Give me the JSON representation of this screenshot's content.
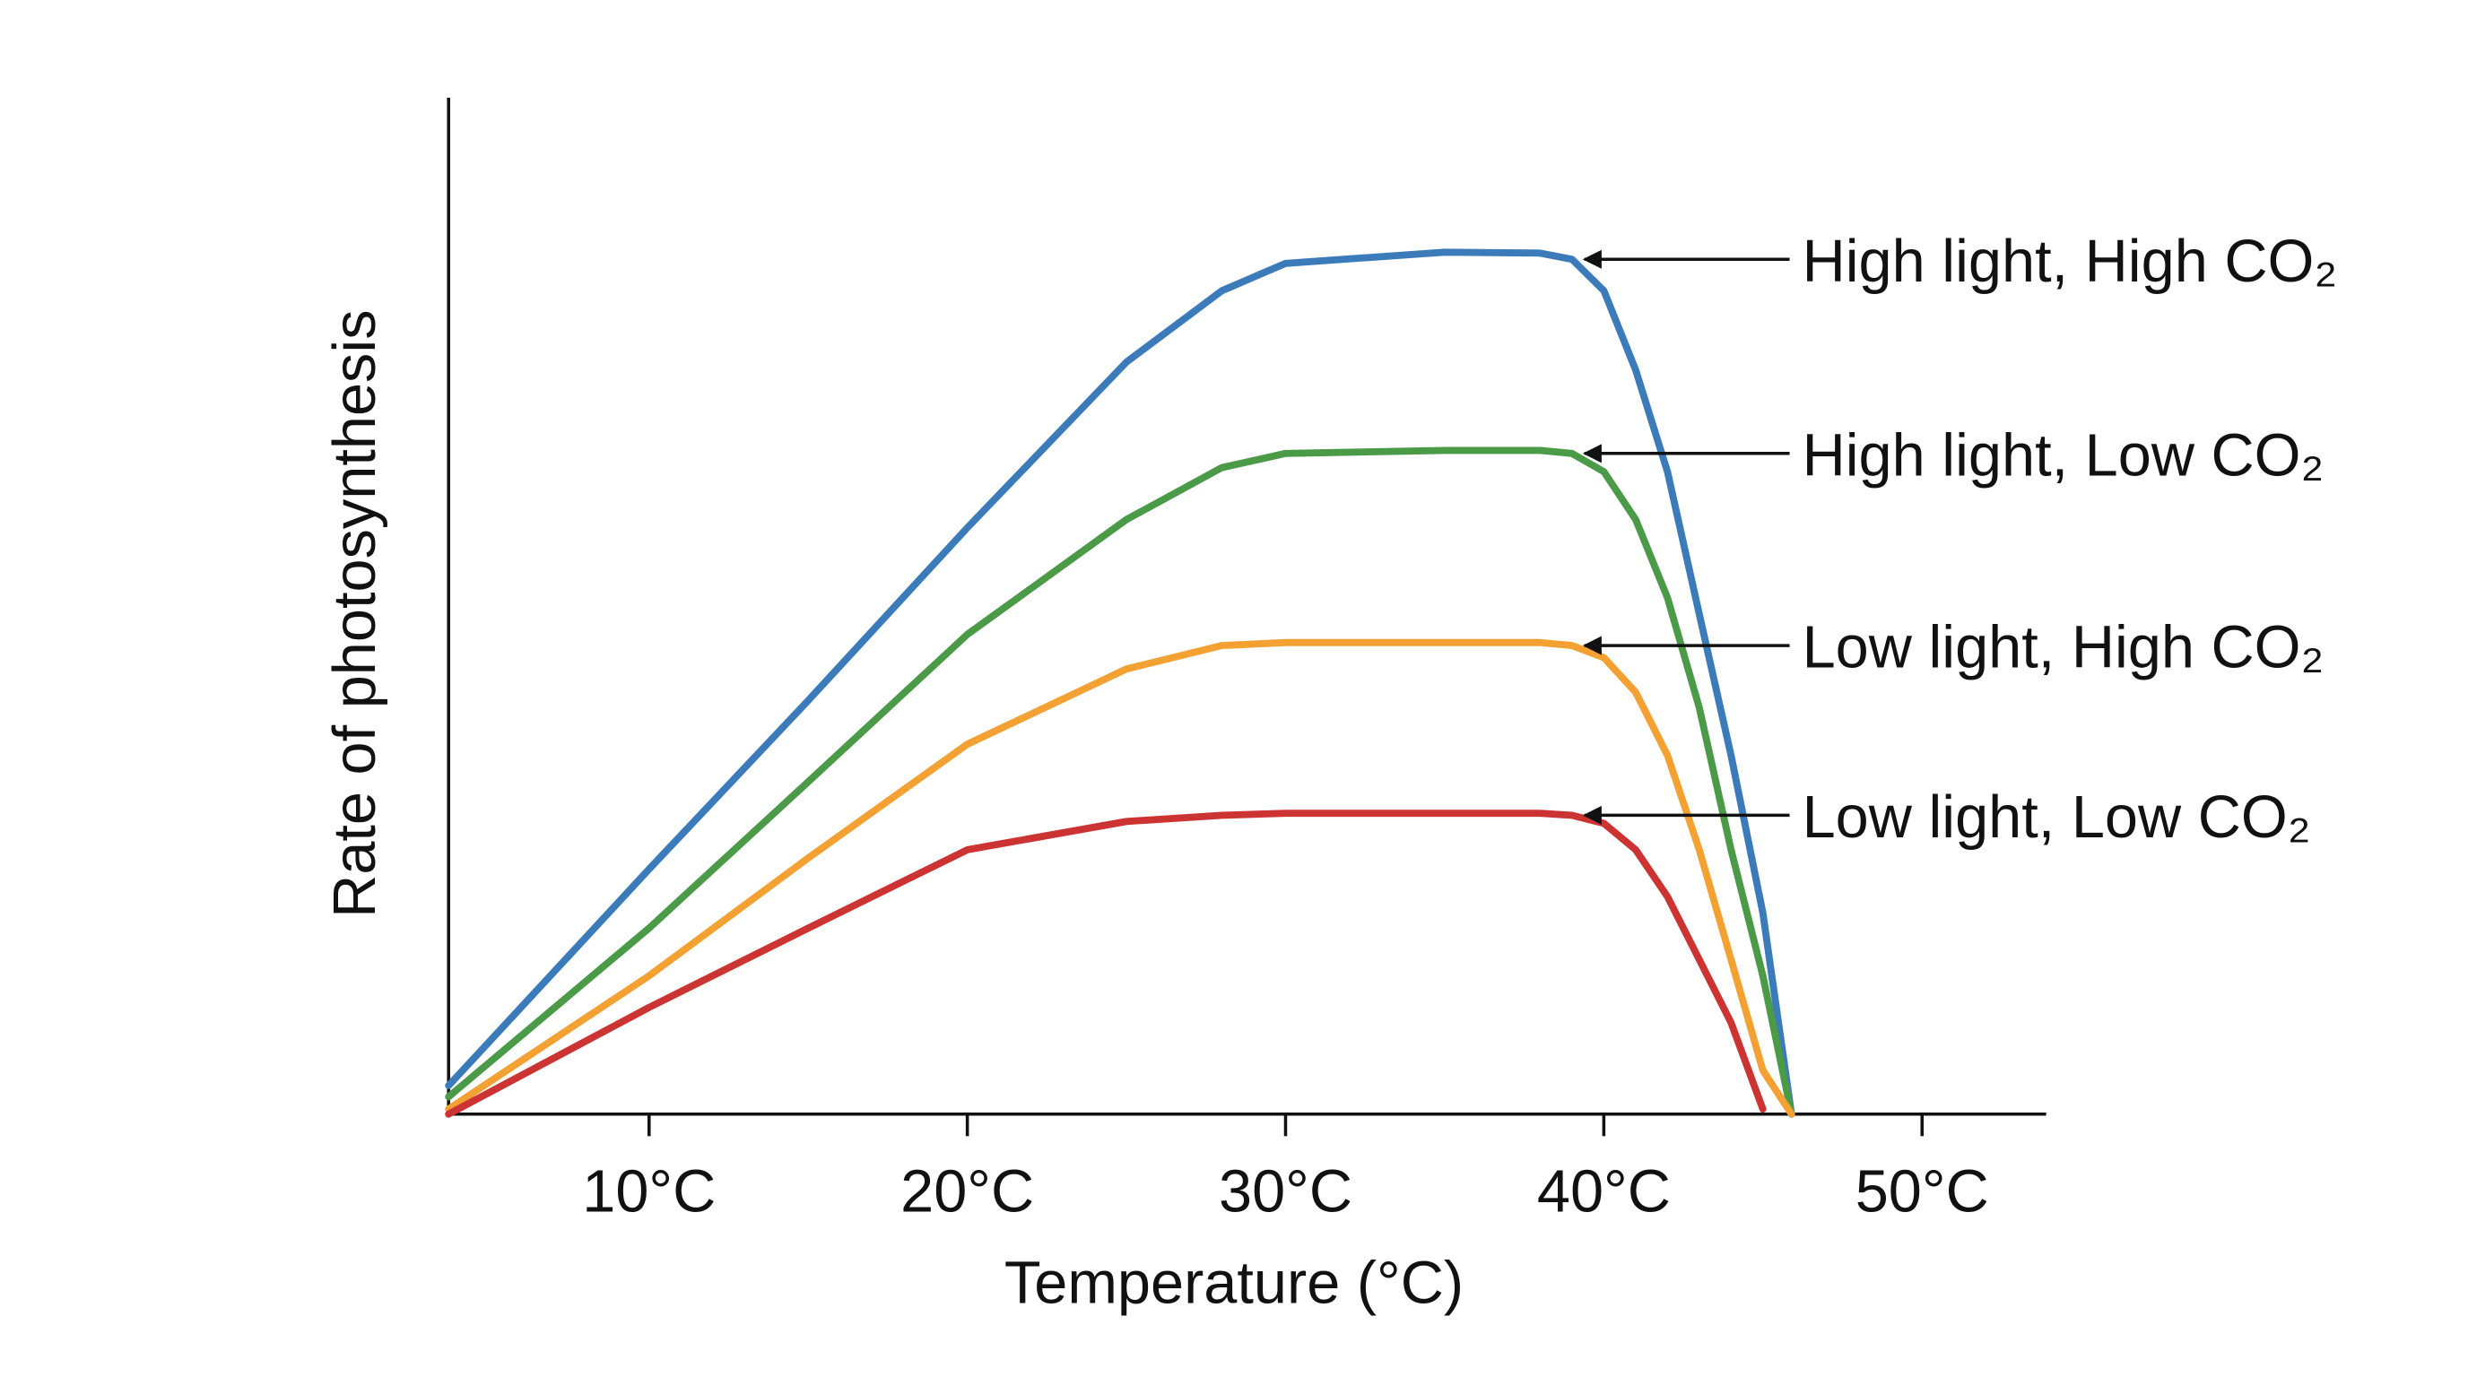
{
  "chart_data": {
    "type": "line",
    "x_label": "Temperature (°C)",
    "y_label": "Rate of photosynthesis",
    "x": [
      3.7,
      10,
      15,
      20,
      25,
      28,
      30,
      35,
      38,
      39,
      40,
      41,
      42,
      43,
      44,
      45,
      45.9
    ],
    "xlim": [
      3.7,
      53.9
    ],
    "xticks": [
      {
        "value": 10,
        "label": "10°C"
      },
      {
        "value": 20,
        "label": "20°C"
      },
      {
        "value": 30,
        "label": "30°C"
      },
      {
        "value": 40,
        "label": "40°C"
      },
      {
        "value": 50,
        "label": "50°C"
      }
    ],
    "ylim": [
      0,
      100
    ],
    "series": [
      {
        "name": "High light, High CO₂",
        "color": "#3b7bb9",
        "values": [
          2.8,
          24.1,
          40.7,
          57.7,
          74,
          81,
          83.7,
          84.8,
          84.7,
          84.1,
          81,
          73.2,
          63.2,
          49.2,
          35.3,
          19.8,
          0
        ]
      },
      {
        "name": "High light, Low CO₂",
        "color": "#4b9a48",
        "values": [
          1.7,
          18.3,
          32.7,
          47.2,
          58.5,
          63.6,
          65,
          65.3,
          65.3,
          65,
          63.2,
          58.5,
          50.8,
          40,
          26,
          13.6,
          0
        ]
      },
      {
        "name": "Low light, High CO₂",
        "color": "#f2a132",
        "values": [
          0.5,
          13.6,
          25.2,
          36.4,
          43.8,
          46.1,
          46.4,
          46.4,
          46.4,
          46.1,
          44.9,
          41.5,
          35.3,
          26,
          15.2,
          4.3,
          0
        ]
      },
      {
        "name": "Low light, Low CO₂",
        "color": "#cc3333",
        "values": [
          0,
          10.5,
          18.3,
          26,
          28.8,
          29.4,
          29.6,
          29.6,
          29.6,
          29.4,
          28.6,
          26,
          21.4,
          15.2,
          9,
          0.5,
          null
        ]
      }
    ]
  }
}
